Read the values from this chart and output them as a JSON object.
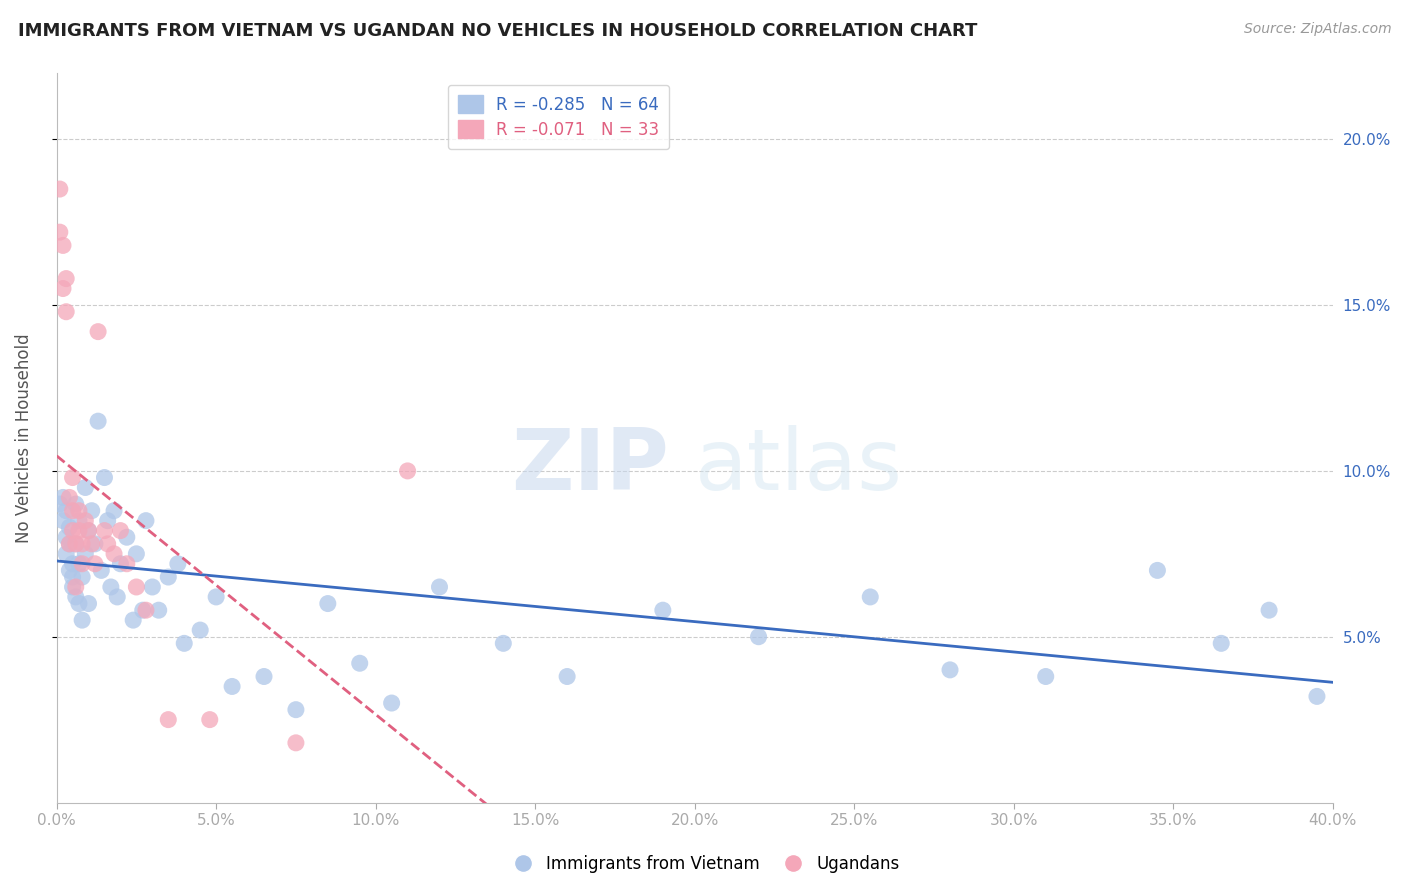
{
  "title": "IMMIGRANTS FROM VIETNAM VS UGANDAN NO VEHICLES IN HOUSEHOLD CORRELATION CHART",
  "source": "Source: ZipAtlas.com",
  "ylabel": "No Vehicles in Household",
  "legend_label1": "Immigrants from Vietnam",
  "legend_label2": "Ugandans",
  "R1": -0.285,
  "N1": 64,
  "R2": -0.071,
  "N2": 33,
  "xlim": [
    0.0,
    0.4
  ],
  "ylim": [
    0.0,
    0.22
  ],
  "xticks": [
    0.0,
    0.05,
    0.1,
    0.15,
    0.2,
    0.25,
    0.3,
    0.35,
    0.4
  ],
  "yticks_right": [
    0.05,
    0.1,
    0.15,
    0.2
  ],
  "color_blue": "#aec6e8",
  "color_pink": "#f4a7b9",
  "line_blue": "#3a6bbf",
  "line_pink": "#e06080",
  "watermark_zip": "ZIP",
  "watermark_atlas": "atlas",
  "blue_x": [
    0.001,
    0.002,
    0.002,
    0.003,
    0.003,
    0.003,
    0.004,
    0.004,
    0.004,
    0.005,
    0.005,
    0.005,
    0.006,
    0.006,
    0.006,
    0.007,
    0.007,
    0.007,
    0.008,
    0.008,
    0.009,
    0.009,
    0.01,
    0.01,
    0.011,
    0.012,
    0.013,
    0.014,
    0.015,
    0.016,
    0.017,
    0.018,
    0.019,
    0.02,
    0.022,
    0.024,
    0.025,
    0.027,
    0.028,
    0.03,
    0.032,
    0.035,
    0.038,
    0.04,
    0.045,
    0.05,
    0.055,
    0.065,
    0.075,
    0.085,
    0.095,
    0.105,
    0.12,
    0.14,
    0.16,
    0.19,
    0.22,
    0.255,
    0.28,
    0.31,
    0.345,
    0.365,
    0.38,
    0.395
  ],
  "blue_y": [
    0.09,
    0.085,
    0.092,
    0.088,
    0.075,
    0.08,
    0.078,
    0.083,
    0.07,
    0.068,
    0.072,
    0.065,
    0.09,
    0.078,
    0.062,
    0.085,
    0.072,
    0.06,
    0.068,
    0.055,
    0.095,
    0.075,
    0.082,
    0.06,
    0.088,
    0.078,
    0.115,
    0.07,
    0.098,
    0.085,
    0.065,
    0.088,
    0.062,
    0.072,
    0.08,
    0.055,
    0.075,
    0.058,
    0.085,
    0.065,
    0.058,
    0.068,
    0.072,
    0.048,
    0.052,
    0.062,
    0.035,
    0.038,
    0.028,
    0.06,
    0.042,
    0.03,
    0.065,
    0.048,
    0.038,
    0.058,
    0.05,
    0.062,
    0.04,
    0.038,
    0.07,
    0.048,
    0.058,
    0.032
  ],
  "pink_x": [
    0.001,
    0.001,
    0.002,
    0.002,
    0.003,
    0.003,
    0.004,
    0.004,
    0.005,
    0.005,
    0.005,
    0.006,
    0.006,
    0.007,
    0.007,
    0.008,
    0.008,
    0.009,
    0.01,
    0.011,
    0.012,
    0.013,
    0.015,
    0.016,
    0.018,
    0.02,
    0.022,
    0.025,
    0.028,
    0.035,
    0.048,
    0.075,
    0.11
  ],
  "pink_y": [
    0.185,
    0.172,
    0.168,
    0.155,
    0.148,
    0.158,
    0.092,
    0.078,
    0.088,
    0.082,
    0.098,
    0.078,
    0.065,
    0.088,
    0.082,
    0.078,
    0.072,
    0.085,
    0.082,
    0.078,
    0.072,
    0.142,
    0.082,
    0.078,
    0.075,
    0.082,
    0.072,
    0.065,
    0.058,
    0.025,
    0.025,
    0.018,
    0.1
  ]
}
